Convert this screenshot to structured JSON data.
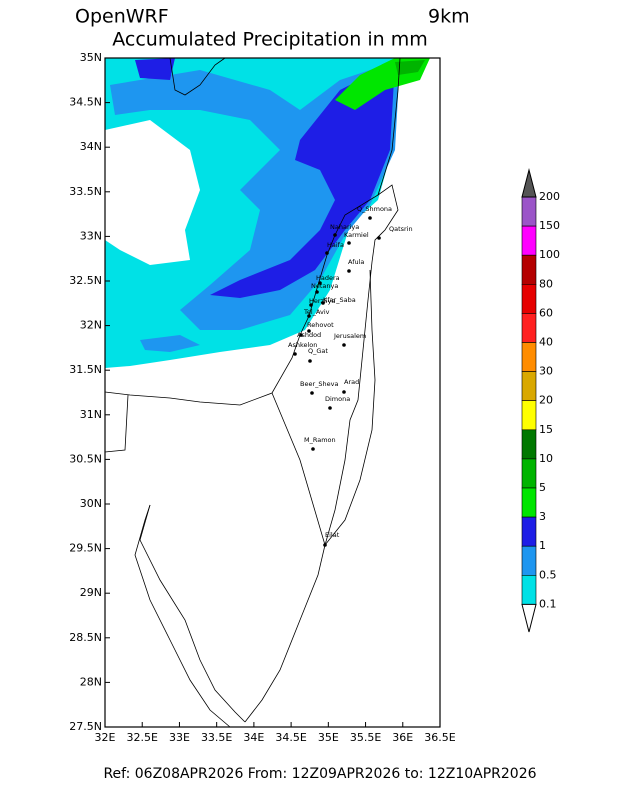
{
  "header": {
    "left": "OpenWRF",
    "right": "9km",
    "title": "Accumulated Precipitation in mm"
  },
  "map": {
    "yticks": [
      "35N",
      "34.5N",
      "34N",
      "33.5N",
      "33N",
      "32.5N",
      "32N",
      "31.5N",
      "31N",
      "30.5N",
      "30N",
      "29.5N",
      "29N",
      "28.5N",
      "28N",
      "27.5N"
    ],
    "xticks": [
      "32E",
      "32.5E",
      "33E",
      "33.5E",
      "34E",
      "34.5E",
      "35E",
      "35.5E",
      "36E",
      "36.5E"
    ],
    "cities": [
      "Q_Shmona",
      "Nahariya",
      "Karmiel",
      "Qatsrin",
      "Haifa",
      "Afula",
      "Hadera",
      "Netanya",
      "Herzliya",
      "Kfar_Saba",
      "Tel_Aviv",
      "Rehovot",
      "Ashdod",
      "Ashkelon",
      "Q_Gat",
      "Jerusalem",
      "Beer_Sheva",
      "Arad",
      "Dimona",
      "M_Ramon",
      "Eilat"
    ]
  },
  "colorbar": {
    "labels": [
      "200",
      "150",
      "100",
      "80",
      "60",
      "40",
      "30",
      "20",
      "15",
      "10",
      "5",
      "3",
      "1",
      "0.5",
      "0.1"
    ],
    "colors": [
      "#9b55c8",
      "#ff00ff",
      "#b40000",
      "#e60000",
      "#ff2020",
      "#ff8c00",
      "#d9a800",
      "#ffff00",
      "#007800",
      "#00b400",
      "#00e600",
      "#1e1ee6",
      "#1e96f0",
      "#00e1e6"
    ],
    "top_color": "#555555",
    "bottom_color": "#ffffff"
  },
  "footer": "Ref: 06Z08APR2026  From: 12Z09APR2026  to: 12Z10APR2026"
}
